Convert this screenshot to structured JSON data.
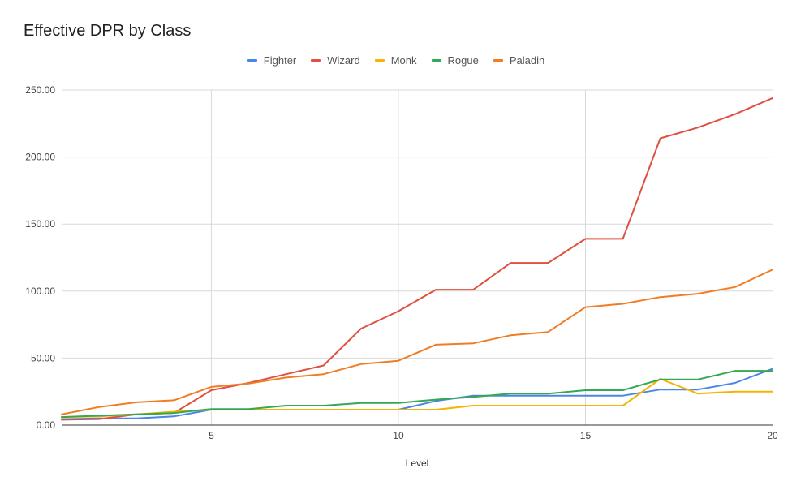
{
  "chart_data": {
    "type": "line",
    "title": "Effective DPR by Class",
    "xlabel": "Level",
    "ylabel": "",
    "xlim": [
      1,
      20
    ],
    "ylim": [
      0,
      250
    ],
    "x_ticks": [
      5,
      10,
      15,
      20
    ],
    "y_ticks": [
      "0.00",
      "50.00",
      "100.00",
      "150.00",
      "200.00",
      "250.00"
    ],
    "grid": true,
    "legend_position": "top",
    "x": [
      1,
      2,
      3,
      4,
      5,
      6,
      7,
      8,
      9,
      10,
      11,
      12,
      13,
      14,
      15,
      16,
      17,
      18,
      19,
      20
    ],
    "series": [
      {
        "name": "Fighter",
        "color": "#4a86e8",
        "values": [
          4.5,
          5,
          5,
          6.5,
          11.5,
          11.5,
          11.5,
          11.5,
          11.5,
          11.5,
          18,
          22,
          22,
          22,
          22,
          22,
          26.5,
          26.5,
          31.5,
          42
        ]
      },
      {
        "name": "Wizard",
        "color": "#e04f3f",
        "values": [
          4,
          4.5,
          8,
          9,
          26,
          31.5,
          38,
          44.5,
          72,
          85,
          101,
          101,
          121,
          121,
          139,
          139,
          214,
          222,
          232,
          244
        ]
      },
      {
        "name": "Monk",
        "color": "#f4b400",
        "values": [
          6,
          6.5,
          8,
          10,
          11.5,
          11.5,
          11.5,
          11.5,
          11.5,
          11.5,
          11.5,
          14.5,
          14.5,
          14.5,
          14.5,
          14.5,
          34.5,
          23.5,
          25,
          25
        ]
      },
      {
        "name": "Rogue",
        "color": "#34a853",
        "values": [
          6,
          7,
          8,
          9,
          12,
          12,
          14.5,
          14.5,
          16.5,
          16.5,
          19,
          21,
          23.5,
          23.5,
          26,
          26,
          34,
          34,
          40.5,
          40.5
        ]
      },
      {
        "name": "Paladin",
        "color": "#f17c23",
        "values": [
          8,
          13.5,
          17,
          18.5,
          28.5,
          31,
          35.5,
          38,
          45.5,
          48,
          60,
          61,
          67,
          69.5,
          88,
          90.5,
          95.5,
          98,
          103,
          116
        ]
      }
    ]
  }
}
